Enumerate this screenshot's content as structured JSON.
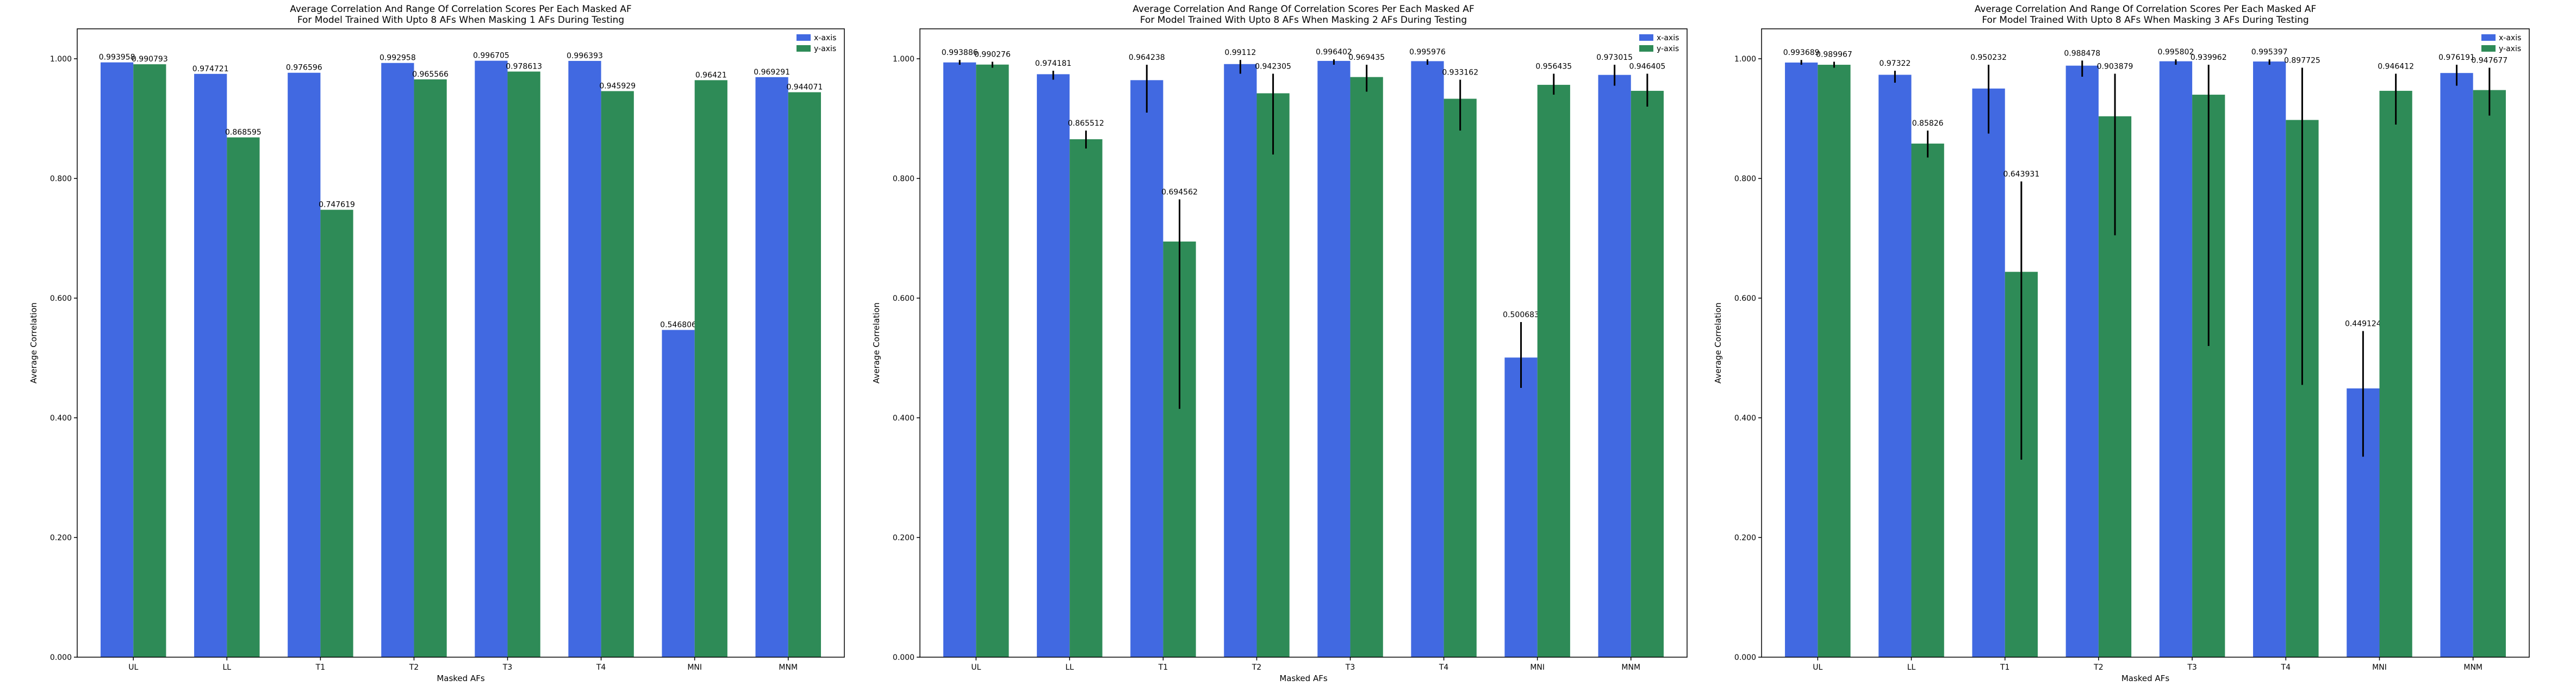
{
  "colors": {
    "x_axis": "#4169e1",
    "y_axis": "#2e8b57",
    "error_bar": "#000000",
    "frame": "#000000"
  },
  "chart_data": [
    {
      "type": "bar",
      "title": "Average Correlation And Range Of Correlation Scores Per Each Masked AF\nFor Model Trained With Upto 8 AFs When Masking 1 AFs During Testing",
      "xlabel": "Masked AFs",
      "ylabel": "Average Correlation",
      "ylim": [
        0,
        1.05
      ],
      "yticks": [
        "0.000",
        "0.200",
        "0.400",
        "0.600",
        "0.800",
        "1.000"
      ],
      "ytick_values": [
        0,
        0.2,
        0.4,
        0.6,
        0.8,
        1.0
      ],
      "categories": [
        "UL",
        "LL",
        "T1",
        "T2",
        "T3",
        "T4",
        "MNI",
        "MNM"
      ],
      "legend": "top-right",
      "grid": false,
      "series": [
        {
          "name": "x-axis",
          "values": [
            0.993958,
            0.974721,
            0.976596,
            0.992958,
            0.996705,
            0.996393,
            0.546806,
            0.969291
          ],
          "labels": [
            "0.993958",
            "0.974721",
            "0.976596",
            "0.992958",
            "0.996705",
            "0.996393",
            "0.546806",
            "0.969291"
          ],
          "ranges": [
            null,
            null,
            null,
            null,
            null,
            null,
            null,
            null
          ]
        },
        {
          "name": "y-axis",
          "values": [
            0.990793,
            0.868595,
            0.747619,
            0.965566,
            0.978613,
            0.945929,
            0.96421,
            0.944071
          ],
          "labels": [
            "0.990793",
            "0.868595",
            "0.747619",
            "0.965566",
            "0.978613",
            "0.945929",
            "0.96421",
            "0.944071"
          ],
          "ranges": [
            null,
            null,
            null,
            null,
            null,
            null,
            null,
            null
          ]
        }
      ]
    },
    {
      "type": "bar",
      "title": "Average Correlation And Range Of Correlation Scores Per Each Masked AF\nFor Model Trained With Upto 8 AFs When Masking 2 AFs During Testing",
      "xlabel": "Masked AFs",
      "ylabel": "Average Correlation",
      "ylim": [
        0,
        1.05
      ],
      "yticks": [
        "0.000",
        "0.200",
        "0.400",
        "0.600",
        "0.800",
        "1.000"
      ],
      "ytick_values": [
        0,
        0.2,
        0.4,
        0.6,
        0.8,
        1.0
      ],
      "categories": [
        "UL",
        "LL",
        "T1",
        "T2",
        "T3",
        "T4",
        "MNI",
        "MNM"
      ],
      "legend": "top-right",
      "grid": false,
      "series": [
        {
          "name": "x-axis",
          "values": [
            0.993886,
            0.974181,
            0.964238,
            0.99112,
            0.996402,
            0.995976,
            0.500683,
            0.973015
          ],
          "labels": [
            "0.993886",
            "0.974181",
            "0.964238",
            "0.99112",
            "0.996402",
            "0.995976",
            "0.500683",
            "0.973015"
          ],
          "ranges": [
            [
              0.99,
              0.998
            ],
            [
              0.965,
              0.98
            ],
            [
              0.91,
              0.99
            ],
            [
              0.975,
              0.998
            ],
            [
              0.99,
              0.999
            ],
            [
              0.99,
              0.999
            ],
            [
              0.45,
              0.56
            ],
            [
              0.955,
              0.99
            ]
          ]
        },
        {
          "name": "y-axis",
          "values": [
            0.990276,
            0.865512,
            0.694562,
            0.942305,
            0.969435,
            0.933162,
            0.956435,
            0.946405
          ],
          "labels": [
            "0.990276",
            "0.865512",
            "0.694562",
            "0.942305",
            "0.969435",
            "0.933162",
            "0.956435",
            "0.946405"
          ],
          "ranges": [
            [
              0.985,
              0.995
            ],
            [
              0.85,
              0.88
            ],
            [
              0.415,
              0.765
            ],
            [
              0.84,
              0.975
            ],
            [
              0.945,
              0.99
            ],
            [
              0.88,
              0.965
            ],
            [
              0.94,
              0.975
            ],
            [
              0.92,
              0.975
            ]
          ]
        }
      ]
    },
    {
      "type": "bar",
      "title": "Average Correlation And Range Of Correlation Scores Per Each Masked AF\nFor Model Trained With Upto 8 AFs When Masking 3 AFs During Testing",
      "xlabel": "Masked AFs",
      "ylabel": "Average Correlation",
      "ylim": [
        0,
        1.05
      ],
      "yticks": [
        "0.000",
        "0.200",
        "0.400",
        "0.600",
        "0.800",
        "1.000"
      ],
      "ytick_values": [
        0,
        0.2,
        0.4,
        0.6,
        0.8,
        1.0
      ],
      "categories": [
        "UL",
        "LL",
        "T1",
        "T2",
        "T3",
        "T4",
        "MNI",
        "MNM"
      ],
      "legend": "top-right",
      "grid": false,
      "series": [
        {
          "name": "x-axis",
          "values": [
            0.993689,
            0.97322,
            0.950232,
            0.988478,
            0.995802,
            0.995397,
            0.449124,
            0.976191
          ],
          "labels": [
            "0.993689",
            "0.97322",
            "0.950232",
            "0.988478",
            "0.995802",
            "0.995397",
            "0.449124",
            "0.976191"
          ],
          "ranges": [
            [
              0.99,
              0.998
            ],
            [
              0.96,
              0.98
            ],
            [
              0.875,
              0.99
            ],
            [
              0.97,
              0.997
            ],
            [
              0.99,
              0.999
            ],
            [
              0.99,
              0.999
            ],
            [
              0.335,
              0.545
            ],
            [
              0.955,
              0.99
            ]
          ]
        },
        {
          "name": "y-axis",
          "values": [
            0.989967,
            0.85826,
            0.643931,
            0.903879,
            0.939962,
            0.897725,
            0.946412,
            0.947677
          ],
          "labels": [
            "0.989967",
            "0.85826",
            "0.643931",
            "0.903879",
            "0.939962",
            "0.897725",
            "0.946412",
            "0.947677"
          ],
          "ranges": [
            [
              0.985,
              0.995
            ],
            [
              0.835,
              0.88
            ],
            [
              0.33,
              0.795
            ],
            [
              0.705,
              0.975
            ],
            [
              0.52,
              0.99
            ],
            [
              0.455,
              0.985
            ],
            [
              0.89,
              0.975
            ],
            [
              0.905,
              0.985
            ]
          ]
        }
      ]
    }
  ]
}
